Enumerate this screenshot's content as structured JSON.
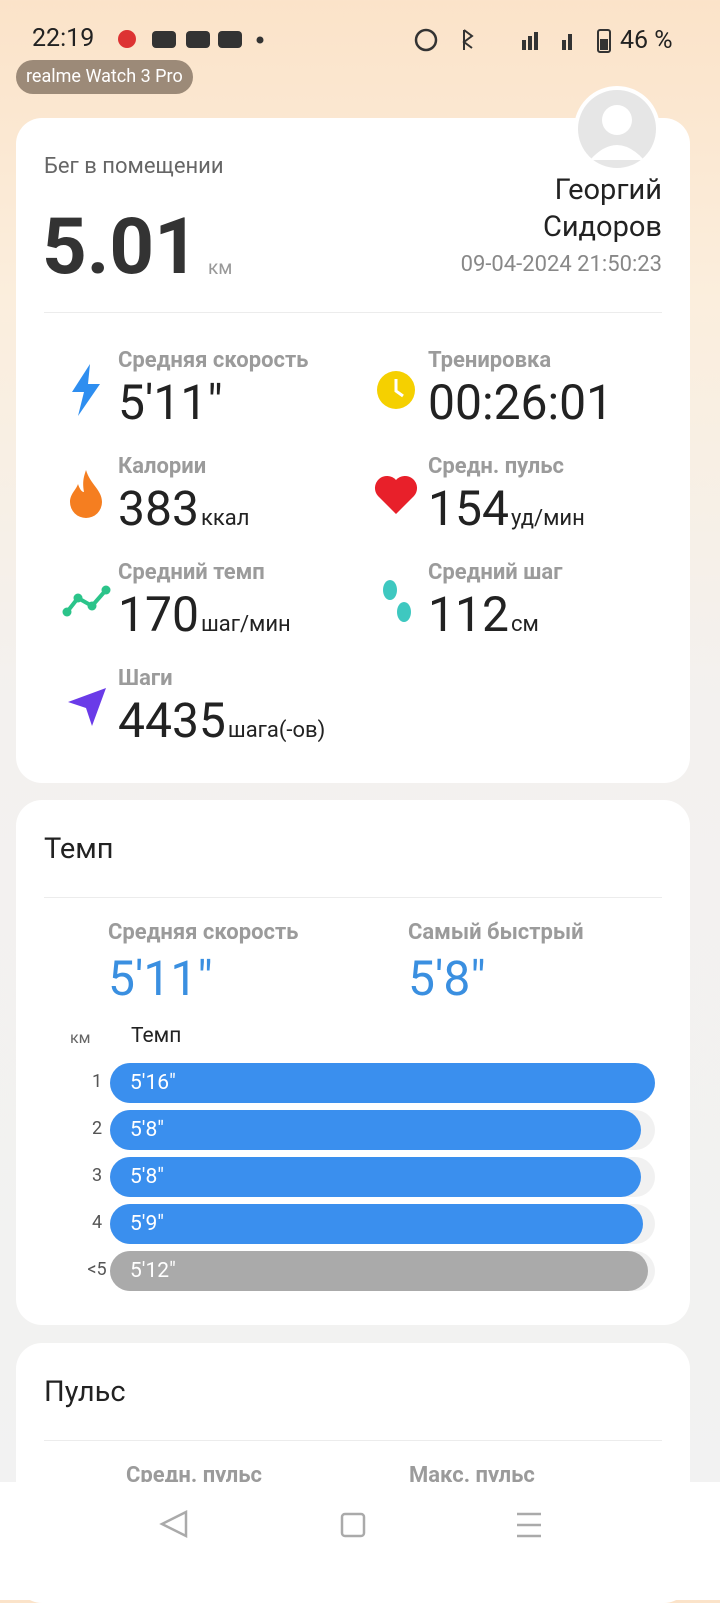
{
  "status_bar": {
    "time": "22:19",
    "battery": "46 %"
  },
  "device": "realme Watch 3 Pro",
  "summary": {
    "activity": "Бег в помещении",
    "distance": "5.01",
    "distance_unit": "км",
    "user": "Георгий Сидоров",
    "datetime": "09-04-2024 21:50:23",
    "stats": [
      {
        "label": "Средняя скорость",
        "value": "5'11\""
      },
      {
        "label": "Тренировка",
        "value": "00:26:01"
      },
      {
        "label": "Калории",
        "value": "383",
        "unit": "ккал"
      },
      {
        "label": "Средн. пульс",
        "value": "154",
        "unit": "уд/мин"
      },
      {
        "label": "Средний темп",
        "value": "170",
        "unit": "шаг/мин"
      },
      {
        "label": "Средний шаг",
        "value": "112",
        "unit": "см"
      },
      {
        "label": "Шаги",
        "value": "4435",
        "unit": "шага(-ов)"
      }
    ]
  },
  "pace": {
    "title": "Темп",
    "summary": [
      {
        "label": "Средняя скорость",
        "value": "5'11\""
      },
      {
        "label": "Самый быстрый",
        "value": "5'8\""
      }
    ],
    "columns": [
      "км",
      "Темп"
    ],
    "rows": [
      {
        "km": "1",
        "pace": "5'16\""
      },
      {
        "km": "2",
        "pace": "5'8\""
      },
      {
        "km": "3",
        "pace": "5'8\""
      },
      {
        "km": "4",
        "pace": "5'9\""
      },
      {
        "km": "<5",
        "pace": "5'12\""
      }
    ]
  },
  "pulse": {
    "title": "Пульс",
    "labels": [
      "Средн. пульс",
      "Макс. пульс"
    ]
  }
}
